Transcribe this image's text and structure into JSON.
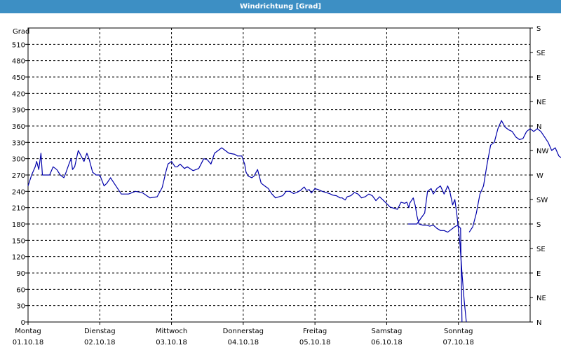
{
  "window": {
    "title": "Windrichtung [Grad]"
  },
  "chart_data": {
    "type": "line",
    "title": "Windrichtung [Grad]",
    "ylabel": "Grad",
    "ylim": [
      0,
      540
    ],
    "y_ticks": [
      0,
      30,
      60,
      90,
      120,
      150,
      180,
      210,
      240,
      270,
      300,
      330,
      360,
      390,
      420,
      450,
      480,
      510
    ],
    "y2_ticks": [
      "N",
      "NE",
      "E",
      "SE",
      "S",
      "SW",
      "W",
      "NW",
      "N",
      "NE",
      "E",
      "SE",
      "S"
    ],
    "x_ticks": [
      {
        "day": "Montag",
        "date": "01.10.18"
      },
      {
        "day": "Dienstag",
        "date": "02.10.18"
      },
      {
        "day": "Mittwoch",
        "date": "03.10.18"
      },
      {
        "day": "Donnerstag",
        "date": "04.10.18"
      },
      {
        "day": "Freitag",
        "date": "05.10.18"
      },
      {
        "day": "Samstag",
        "date": "06.10.18"
      },
      {
        "day": "Sonntag",
        "date": "07.10.18"
      }
    ],
    "xlim_days": [
      0,
      7
    ],
    "grid": true,
    "line_color": "#0000aa",
    "series": [
      {
        "x": [
          0.0,
          0.05,
          0.1,
          0.12,
          0.15,
          0.18,
          0.2,
          0.25,
          0.3,
          0.35,
          0.4,
          0.45,
          0.5,
          0.53,
          0.57,
          0.6,
          0.62,
          0.65,
          0.7,
          0.78,
          0.82,
          0.85,
          0.9,
          0.95,
          1.0,
          1.03,
          1.06,
          1.1,
          1.15,
          1.2,
          1.3,
          1.4,
          1.5,
          1.6,
          1.7,
          1.8,
          1.87,
          1.92,
          1.95,
          2.0,
          2.05,
          2.08,
          2.12,
          2.18,
          2.22,
          2.3,
          2.38,
          2.45,
          2.5,
          2.55,
          2.6,
          2.65,
          2.7,
          2.75,
          2.8,
          2.88,
          2.92,
          2.98,
          3.02,
          3.04,
          3.07,
          3.12,
          3.15,
          3.2,
          3.25,
          3.3,
          3.35,
          3.4,
          3.45,
          3.5,
          3.55,
          3.6,
          3.65,
          3.7,
          3.75,
          3.8,
          3.85,
          3.88,
          3.92,
          3.95,
          4.0,
          4.05,
          4.1,
          4.15,
          4.2,
          4.25,
          4.3,
          4.35,
          4.38,
          4.42,
          4.45,
          4.5,
          4.55,
          4.6,
          4.65,
          4.7,
          4.75,
          4.8,
          4.85,
          4.9,
          4.95,
          5.05,
          5.15,
          5.2,
          5.25,
          5.28,
          5.31,
          5.32,
          5.34
        ],
        "values": [
          250,
          270,
          285,
          295,
          280,
          310,
          270,
          270,
          270,
          285,
          280,
          270,
          265,
          275,
          290,
          300,
          280,
          285,
          315,
          295,
          310,
          300,
          275,
          270,
          270,
          260,
          250,
          255,
          265,
          255,
          235,
          235,
          240,
          237,
          228,
          230,
          247,
          275,
          290,
          295,
          285,
          285,
          290,
          282,
          285,
          278,
          282,
          300,
          298,
          290,
          310,
          315,
          320,
          315,
          310,
          308,
          305,
          305,
          290,
          275,
          268,
          265,
          268,
          280,
          255,
          250,
          245,
          235,
          228,
          230,
          232,
          240,
          240,
          236,
          238,
          242,
          248,
          242,
          243,
          237,
          245,
          243,
          240,
          238,
          236,
          233,
          232,
          228,
          228,
          224,
          230,
          232,
          238,
          235,
          228,
          230,
          235,
          232,
          223,
          230,
          224,
          211,
          207,
          220,
          218,
          220,
          210,
          218,
          222
        ]
      },
      {
        "x": [
          5.34,
          5.37,
          5.4,
          5.42,
          5.45,
          5.5,
          5.55,
          5.6,
          5.65,
          5.7,
          5.75,
          5.8,
          5.85,
          5.9,
          5.95,
          5.99,
          6.03,
          6.05
        ],
        "values": [
          222,
          228,
          213,
          196,
          180,
          178,
          178,
          176,
          178,
          172,
          168,
          168,
          165,
          170,
          175,
          178,
          172,
          0
        ]
      },
      {
        "x": [
          5.3,
          5.42,
          5.53,
          5.57,
          5.62,
          5.65,
          5.7,
          5.75,
          5.8,
          5.85,
          5.88,
          5.92,
          5.95,
          5.98,
          6.02,
          6.05,
          6.08,
          6.11
        ],
        "values": [
          180,
          180,
          200,
          240,
          245,
          235,
          245,
          250,
          235,
          250,
          240,
          215,
          225,
          195,
          145,
          90,
          40,
          0
        ]
      },
      {
        "x": [
          6.15,
          6.2,
          6.25,
          6.3,
          6.35,
          6.4,
          6.45,
          6.5,
          6.55,
          6.6,
          6.65,
          6.7,
          6.75,
          6.8,
          6.85,
          6.9,
          6.95,
          7.0,
          7.05,
          7.1,
          7.15,
          7.2,
          7.25,
          7.3,
          7.35,
          7.4,
          7.45,
          7.5,
          7.55,
          7.6,
          7.65
        ],
        "values": [
          165,
          175,
          200,
          235,
          250,
          290,
          325,
          330,
          355,
          370,
          358,
          353,
          350,
          340,
          335,
          337,
          350,
          355,
          350,
          355,
          350,
          340,
          330,
          315,
          320,
          305,
          300,
          360,
          360,
          360,
          360
        ]
      }
    ]
  }
}
